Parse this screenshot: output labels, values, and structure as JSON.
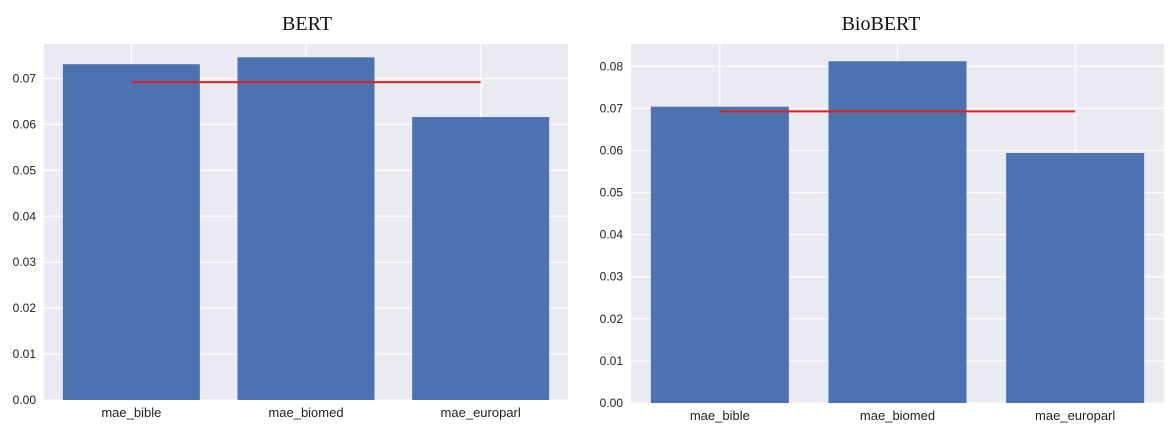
{
  "chart_data": [
    {
      "type": "bar",
      "title": "BERT",
      "categories": [
        "mae_bible",
        "mae_biomed",
        "mae_europarl"
      ],
      "values": [
        0.0731,
        0.0746,
        0.0616
      ],
      "reference_line": {
        "value": 0.0692,
        "color": "#e0201b"
      },
      "ylim": [
        0,
        0.0775
      ],
      "yticks": [
        "0.00",
        "0.01",
        "0.02",
        "0.03",
        "0.04",
        "0.05",
        "0.06",
        "0.07"
      ],
      "ytick_values": [
        0,
        0.01,
        0.02,
        0.03,
        0.04,
        0.05,
        0.06,
        0.07
      ],
      "grid": true,
      "bar_color": "#4c72b0",
      "background_color": "#eaeaf2"
    },
    {
      "type": "bar",
      "title": "BioBERT",
      "categories": [
        "mae_bible",
        "mae_biomed",
        "mae_europarl"
      ],
      "values": [
        0.0704,
        0.0812,
        0.0594
      ],
      "reference_line": {
        "value": 0.0693,
        "color": "#e0201b"
      },
      "ylim": [
        0,
        0.0853
      ],
      "yticks": [
        "0.00",
        "0.01",
        "0.02",
        "0.03",
        "0.04",
        "0.05",
        "0.06",
        "0.07",
        "0.08"
      ],
      "ytick_values": [
        0,
        0.01,
        0.02,
        0.03,
        0.04,
        0.05,
        0.06,
        0.07,
        0.08
      ],
      "grid": true,
      "bar_color": "#4c72b0",
      "background_color": "#eaeaf2"
    }
  ]
}
